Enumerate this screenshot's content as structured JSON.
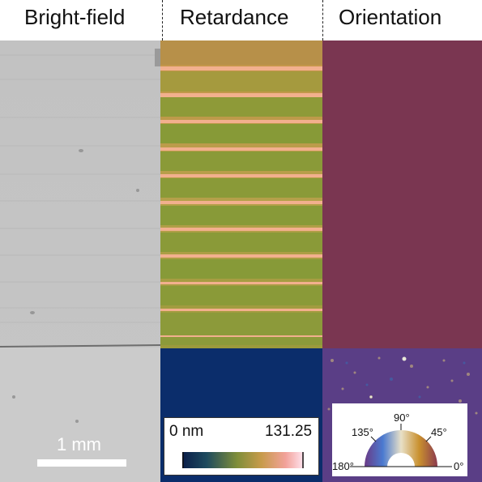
{
  "panels": {
    "brightfield": {
      "title": "Bright-field",
      "scalebar": {
        "label": "1 mm"
      }
    },
    "retardance": {
      "title": "Retardance",
      "colorbar": {
        "min_label": "0 nm",
        "max_label": "131.25",
        "min": 0,
        "max": 131.25,
        "unit": "nm"
      }
    },
    "orientation": {
      "title": "Orientation",
      "wheel": {
        "labels": [
          "0°",
          "45°",
          "90°",
          "135°",
          "180°"
        ]
      }
    }
  },
  "colors": {
    "ret_band": "#8a9a38",
    "ret_stripe": "#f2b08e",
    "ret_lower": "#0b2d6b",
    "ori_upper": "#7a3651",
    "bf": "#c4c4c4"
  }
}
